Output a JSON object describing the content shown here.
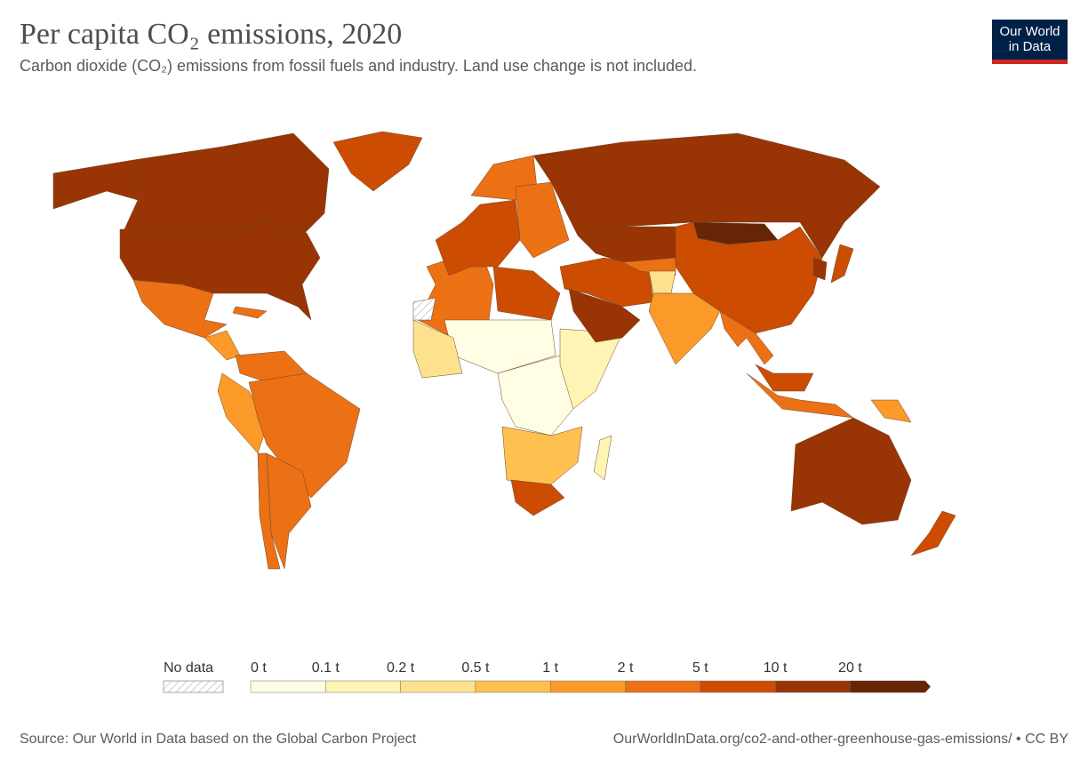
{
  "header": {
    "title": "Per capita CO₂ emissions, 2020",
    "subtitle": "Carbon dioxide (CO₂) emissions from fossil fuels and industry. Land use change is not included.",
    "logo": "Our World in Data"
  },
  "logo_lines": [
    "Our World",
    "in Data"
  ],
  "chart_data": {
    "type": "choropleth",
    "title": "Per capita CO₂ emissions, 2020",
    "legend": {
      "no_data_label": "No data",
      "bins": [
        "0 t",
        "0.1 t",
        "0.2 t",
        "0.5 t",
        "1 t",
        "2 t",
        "5 t",
        "10 t",
        "20 t"
      ],
      "colors": [
        "#fffde3",
        "#fef4b3",
        "#fee18d",
        "#fec04f",
        "#fb9a29",
        "#ec7014",
        "#cc4c02",
        "#993404",
        "#662506"
      ]
    },
    "regions": {
      "Canada": 7,
      "United States": 7,
      "Alaska": 7,
      "Greenland": 6,
      "Mexico": 5,
      "Central America": 4,
      "Caribbean": 5,
      "South America": 5,
      "Argentina": 5,
      "Chile": 5,
      "Venezuela": 5,
      "Peru": 4,
      "Western Europe": 6,
      "Scandinavia": 5,
      "Eastern Europe": 5,
      "Russia": 7,
      "Kazakhstan": 7,
      "Mongolia": 8,
      "China": 6,
      "India": 4,
      "Middle East": 6,
      "Saudi Arabia": 7,
      "Central Asia": 5,
      "Afghanistan": 2,
      "North Africa": 5,
      "Libya": 6,
      "Sahel": 0,
      "West Africa": 2,
      "Central Africa": 0,
      "East Africa": 1,
      "Southern Africa": 3,
      "South Africa": 6,
      "Madagascar": 1,
      "Southeast Asia": 5,
      "Indonesia": 5,
      "Malaysia": 6,
      "Japan": 6,
      "Korea": 7,
      "Australia": 7,
      "New Zealand": 6,
      "Papua New Guinea": 4
    }
  },
  "footer": {
    "source": "Source: Our World in Data based on the Global Carbon Project",
    "link": "OurWorldInData.org/co2-and-other-greenhouse-gas-emissions/ • CC BY"
  }
}
